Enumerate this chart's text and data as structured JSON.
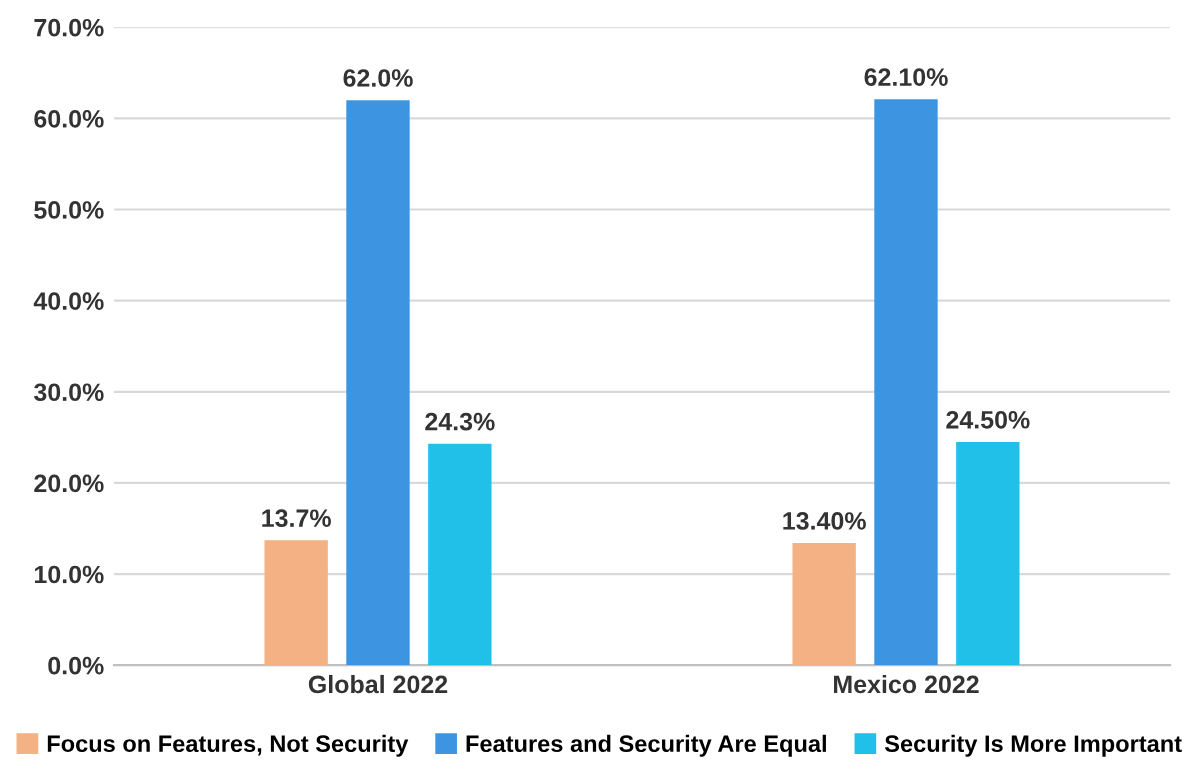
{
  "chart_data": {
    "type": "bar",
    "categories": [
      "Global 2022",
      "Mexico 2022"
    ],
    "series": [
      {
        "name": "Focus on Features, Not Security",
        "color": "#f4b183",
        "values": [
          13.7,
          13.4
        ],
        "value_labels": [
          "13.7%",
          "13.40%"
        ]
      },
      {
        "name": "Features and Security Are Equal",
        "color": "#3d95e2",
        "values": [
          62.0,
          62.1
        ],
        "value_labels": [
          "62.0%",
          "62.10%"
        ]
      },
      {
        "name": "Security Is More Important",
        "color": "#20c0e8",
        "values": [
          24.3,
          24.5
        ],
        "value_labels": [
          "24.3%",
          "24.50%"
        ]
      }
    ],
    "ylim": [
      0,
      70
    ],
    "yticks": [
      {
        "value": 0,
        "label": "0.0%"
      },
      {
        "value": 10,
        "label": "10.0%"
      },
      {
        "value": 20,
        "label": "20.0%"
      },
      {
        "value": 30,
        "label": "30.0%"
      },
      {
        "value": 40,
        "label": "40.0%"
      },
      {
        "value": 50,
        "label": "50.0%"
      },
      {
        "value": 60,
        "label": "60.0%"
      },
      {
        "value": 70,
        "label": "70.0%"
      }
    ],
    "grid": "y",
    "legend": "bottom"
  }
}
